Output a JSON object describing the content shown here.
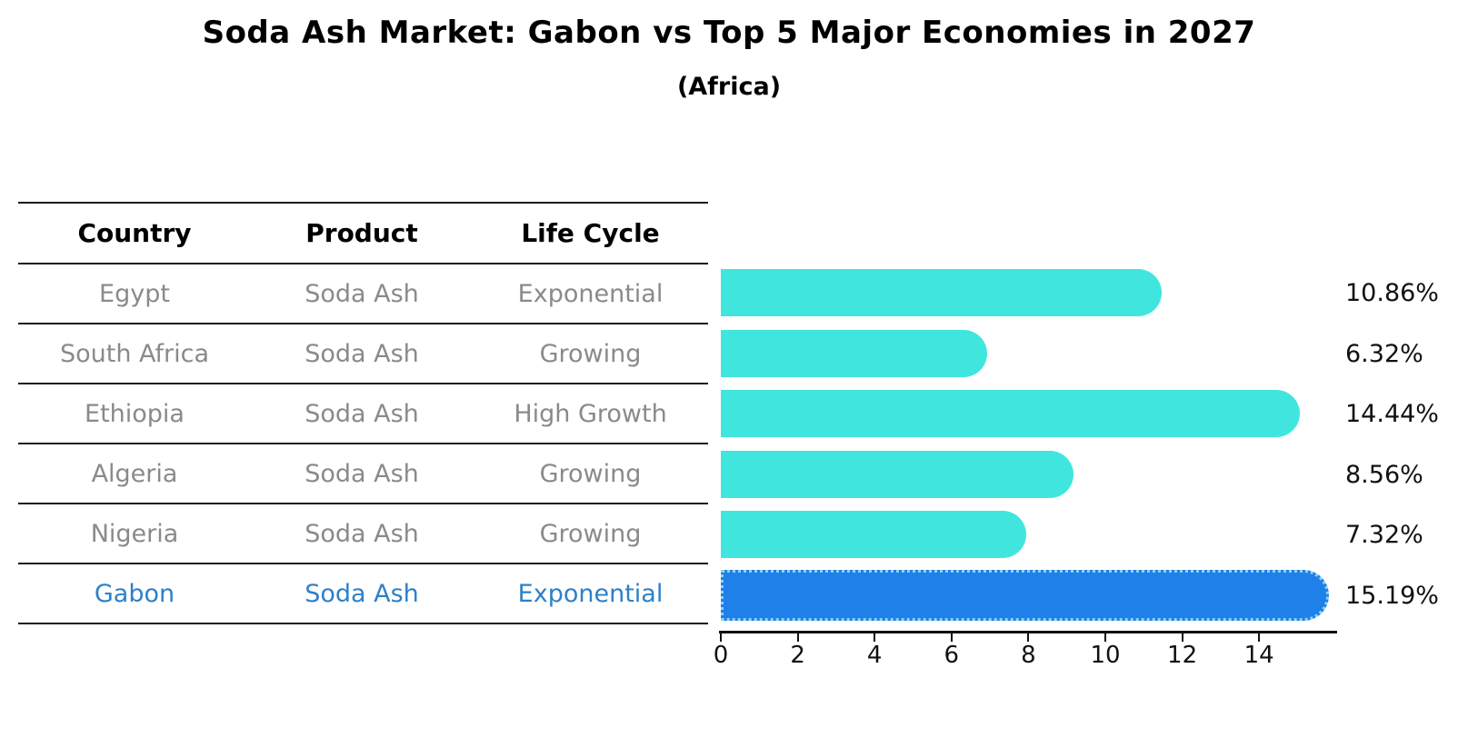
{
  "title": "Soda Ash Market: Gabon vs Top 5 Major Economies in 2027",
  "subtitle": "(Africa)",
  "table": {
    "headers": [
      "Country",
      "Product",
      "Life Cycle"
    ],
    "rows": [
      {
        "country": "Egypt",
        "product": "Soda Ash",
        "life_cycle": "Exponential",
        "highlight": false
      },
      {
        "country": "South Africa",
        "product": "Soda Ash",
        "life_cycle": "Growing",
        "highlight": false
      },
      {
        "country": "Ethiopia",
        "product": "Soda Ash",
        "life_cycle": "High Growth",
        "highlight": false
      },
      {
        "country": "Algeria",
        "product": "Soda Ash",
        "life_cycle": "Growing",
        "highlight": false
      },
      {
        "country": "Nigeria",
        "product": "Soda Ash",
        "life_cycle": "Growing",
        "highlight": false
      },
      {
        "country": "Gabon",
        "product": "Soda Ash",
        "life_cycle": "Exponential",
        "highlight": true
      }
    ]
  },
  "chart_data": {
    "type": "bar",
    "orientation": "horizontal",
    "title": "Soda Ash Market: Gabon vs Top 5 Major Economies in 2027",
    "subtitle": "(Africa)",
    "categories": [
      "Egypt",
      "South Africa",
      "Ethiopia",
      "Algeria",
      "Nigeria",
      "Gabon"
    ],
    "values": [
      10.86,
      6.32,
      14.44,
      8.56,
      7.32,
      15.19
    ],
    "value_labels": [
      "10.86%",
      "6.32%",
      "14.44%",
      "8.56%",
      "7.32%",
      "15.19%"
    ],
    "highlight_index": 5,
    "xlim": [
      0,
      16
    ],
    "x_ticks": [
      0,
      2,
      4,
      6,
      8,
      10,
      12,
      14
    ],
    "grid": false,
    "legend": false,
    "bar_color": "#40e6de",
    "highlight_bar_color": "#1e80e8",
    "highlight_bar_edge_color": "#8ed2f2",
    "highlight_text_color": "#2e80c8",
    "body_text_color": "#8a8a8a",
    "axis_color": "#111111"
  }
}
